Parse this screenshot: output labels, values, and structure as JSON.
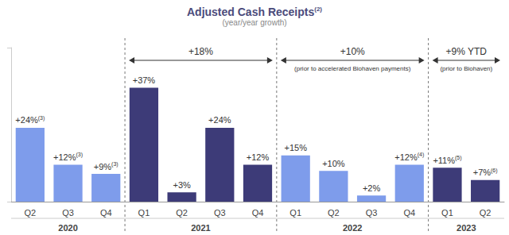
{
  "chart_data": {
    "type": "bar",
    "title": "Adjusted Cash Receipts(2)",
    "subtitle": "(year/year growth)",
    "categories": [
      "Q2",
      "Q3",
      "Q4",
      "Q1",
      "Q2",
      "Q3",
      "Q4",
      "Q1",
      "Q2",
      "Q3",
      "Q4",
      "Q1",
      "Q2"
    ],
    "years": [
      "2020",
      "2020",
      "2020",
      "2021",
      "2021",
      "2021",
      "2021",
      "2022",
      "2022",
      "2022",
      "2022",
      "2023",
      "2023"
    ],
    "values": [
      24,
      12,
      9,
      37,
      3,
      24,
      12,
      15,
      10,
      2,
      12,
      11,
      7
    ],
    "value_labels": [
      "+24%(3)",
      "+12%(3)",
      "+9%(3)",
      "+37%",
      "+3%",
      "+24%",
      "+12%",
      "+15%",
      "+10%",
      "+2%",
      "+12%(4)",
      "+11%(5)",
      "+7%(6)"
    ],
    "colors": [
      "#7e9ceb",
      "#7e9ceb",
      "#7e9ceb",
      "#3d3b78",
      "#3d3b78",
      "#3d3b78",
      "#3d3b78",
      "#7e9ceb",
      "#7e9ceb",
      "#7e9ceb",
      "#7e9ceb",
      "#3d3b78",
      "#3d3b78"
    ],
    "ylim": [
      0,
      50
    ],
    "yticks": [
      0,
      50
    ],
    "grid": false,
    "data_labels": true,
    "tick_labels": "x",
    "annotations": [
      {
        "year": "2021",
        "text": "+18%"
      },
      {
        "year": "2022",
        "text": "+10%",
        "note": "(prior to accelerated Biohaven payments)"
      },
      {
        "year": "2023",
        "text": "+9% YTD",
        "note": "(prior to Biohaven)"
      }
    ]
  }
}
